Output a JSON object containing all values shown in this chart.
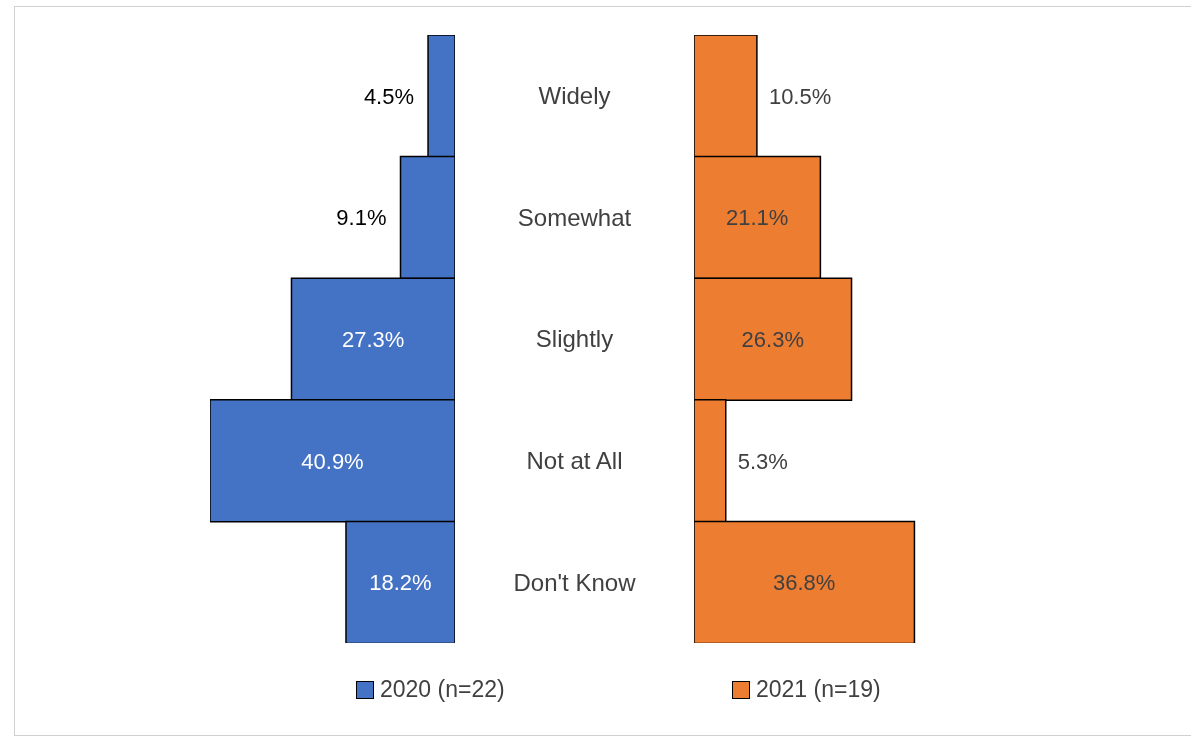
{
  "chart_data": [
    {
      "type": "bar",
      "orientation": "horizontal",
      "categories": [
        "Widely",
        "Somewhat",
        "Slightly",
        "Not at All",
        "Don't Know"
      ],
      "tick_labels": "y",
      "legend": "bottom",
      "series": [
        {
          "name": "2020 (n=22)",
          "color": "#4472c4",
          "values": [
            4.5,
            9.1,
            27.3,
            40.9,
            18.2
          ],
          "value_labels": [
            "4.5%",
            "9.1%",
            "27.3%",
            "40.9%",
            "18.2%"
          ]
        }
      ]
    },
    {
      "type": "bar",
      "orientation": "horizontal",
      "categories": [
        null,
        null,
        null,
        null,
        null
      ],
      "tick_labels": false,
      "legend": "bottom",
      "series": [
        {
          "name": "2021 (n=19)",
          "color": "#ed7d31",
          "values": [
            10.5,
            21.1,
            26.3,
            5.3,
            36.8
          ],
          "value_labels": [
            "10.5%",
            "21.1%",
            "26.3%",
            "5.3%",
            "36.8%"
          ]
        }
      ]
    }
  ]
}
